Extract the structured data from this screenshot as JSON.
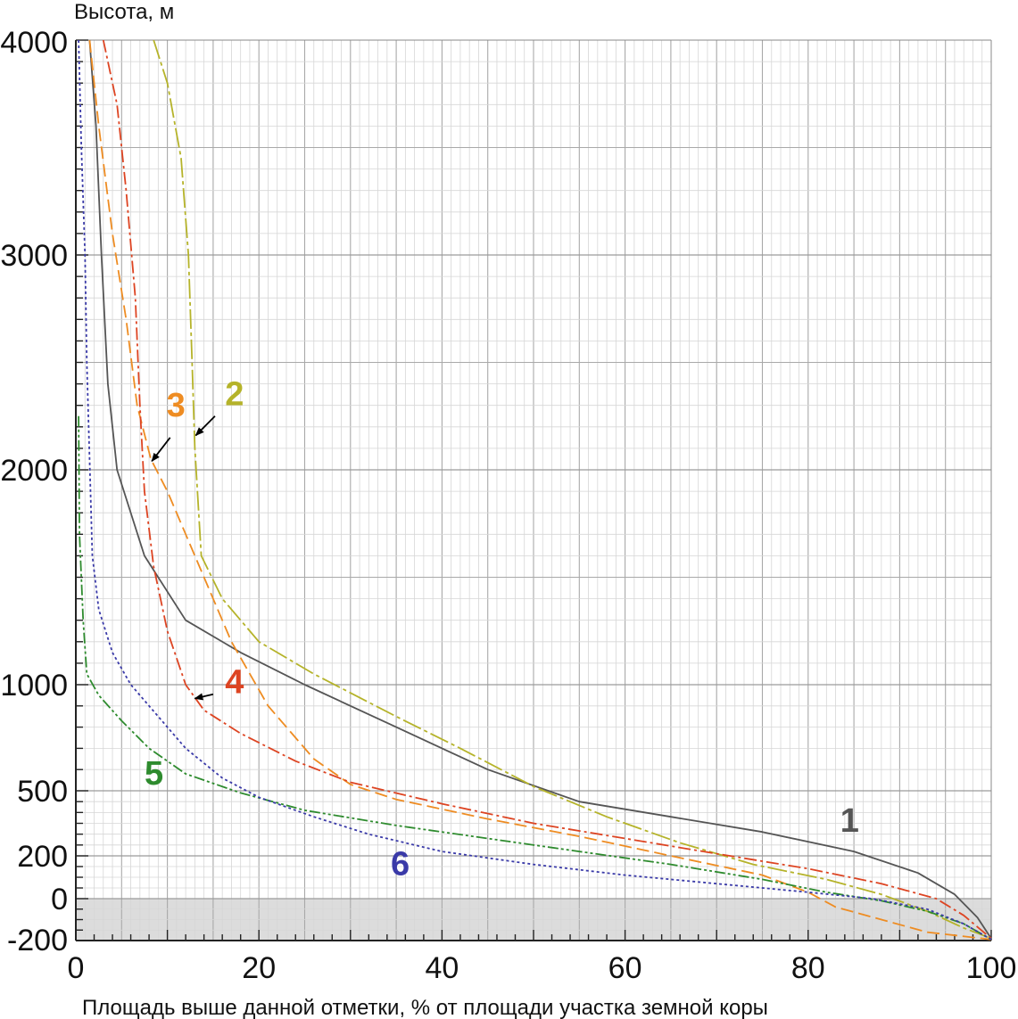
{
  "chart_data": {
    "type": "line",
    "xlabel": "Площадь выше данной отметки, % от площади участка земной коры",
    "ylabel": "Высота, м",
    "xlim": [
      0,
      100
    ],
    "ylim": [
      -200,
      4000
    ],
    "x_ticks": [
      0,
      20,
      40,
      60,
      80,
      100
    ],
    "y_ticks": [
      -200,
      0,
      200,
      500,
      1000,
      2000,
      3000,
      4000
    ],
    "y_ticks_labels": [
      "-200",
      "0",
      "200",
      "500",
      "1000",
      "2000",
      "3000",
      "4000"
    ],
    "x_ticks_labels": [
      "0",
      "20",
      "40",
      "60",
      "80",
      "100"
    ],
    "grid": true,
    "shaded_band": [
      -200,
      0
    ],
    "series": [
      {
        "name": "1",
        "color": "#555555",
        "dash": "",
        "label_at": [
          83.5,
          310
        ],
        "points": [
          [
            1.5,
            4000
          ],
          [
            2.2,
            3600
          ],
          [
            2.8,
            3000
          ],
          [
            3.5,
            2400
          ],
          [
            4.5,
            2000
          ],
          [
            7.5,
            1600
          ],
          [
            12,
            1300
          ],
          [
            18,
            1150
          ],
          [
            25,
            1000
          ],
          [
            35,
            800
          ],
          [
            45,
            600
          ],
          [
            55,
            450
          ],
          [
            65,
            380
          ],
          [
            75,
            310
          ],
          [
            85,
            220
          ],
          [
            92,
            120
          ],
          [
            96,
            20
          ],
          [
            98.5,
            -90
          ],
          [
            100,
            -190
          ]
        ]
      },
      {
        "name": "2",
        "color": "#b5b32a",
        "dash": "22,4,4,4",
        "label_at": [
          16.3,
          2300
        ],
        "points": [
          [
            8.5,
            4000
          ],
          [
            10,
            3800
          ],
          [
            11.5,
            3450
          ],
          [
            12.3,
            3000
          ],
          [
            12.7,
            2500
          ],
          [
            13,
            2100
          ],
          [
            13.7,
            1600
          ],
          [
            16,
            1400
          ],
          [
            20,
            1200
          ],
          [
            26,
            1050
          ],
          [
            35,
            850
          ],
          [
            42,
            700
          ],
          [
            50,
            520
          ],
          [
            58,
            380
          ],
          [
            66,
            260
          ],
          [
            74,
            160
          ],
          [
            82,
            90
          ],
          [
            88,
            20
          ],
          [
            93,
            -60
          ],
          [
            97,
            -140
          ],
          [
            100,
            -190
          ]
        ]
      },
      {
        "name": "3",
        "color": "#ee8c22",
        "dash": "14,6",
        "label_at": [
          9.9,
          2250
        ],
        "points": [
          [
            1.5,
            4000
          ],
          [
            2.5,
            3600
          ],
          [
            4,
            3100
          ],
          [
            5.5,
            2700
          ],
          [
            6.7,
            2300
          ],
          [
            8.2,
            2050
          ],
          [
            10,
            1900
          ],
          [
            13,
            1600
          ],
          [
            17,
            1200
          ],
          [
            21,
            900
          ],
          [
            26,
            650
          ],
          [
            30,
            530
          ],
          [
            35,
            460
          ],
          [
            45,
            370
          ],
          [
            55,
            290
          ],
          [
            65,
            200
          ],
          [
            75,
            110
          ],
          [
            80,
            30
          ],
          [
            83,
            -40
          ],
          [
            88,
            -100
          ],
          [
            93,
            -160
          ],
          [
            100,
            -195
          ]
        ]
      },
      {
        "name": "4",
        "color": "#dd4422",
        "dash": "14,4,3,4",
        "label_at": [
          16.3,
          960
        ],
        "points": [
          [
            3,
            4000
          ],
          [
            4.5,
            3700
          ],
          [
            5.5,
            3300
          ],
          [
            6.5,
            2800
          ],
          [
            7,
            2300
          ],
          [
            7.5,
            1900
          ],
          [
            8.5,
            1550
          ],
          [
            10,
            1250
          ],
          [
            12,
            1000
          ],
          [
            14,
            880
          ],
          [
            18,
            770
          ],
          [
            24,
            640
          ],
          [
            30,
            540
          ],
          [
            40,
            440
          ],
          [
            50,
            350
          ],
          [
            60,
            280
          ],
          [
            70,
            210
          ],
          [
            80,
            140
          ],
          [
            88,
            70
          ],
          [
            94,
            0
          ],
          [
            97,
            -80
          ],
          [
            100,
            -190
          ]
        ]
      },
      {
        "name": "5",
        "color": "#2e8b2e",
        "dash": "12,3,3,3,3,3",
        "label_at": [
          7.5,
          530
        ],
        "points": [
          [
            0.3,
            2250
          ],
          [
            0.4,
            1700
          ],
          [
            0.8,
            1300
          ],
          [
            1.2,
            1050
          ],
          [
            2.5,
            950
          ],
          [
            5,
            830
          ],
          [
            8,
            700
          ],
          [
            12,
            580
          ],
          [
            18,
            490
          ],
          [
            25,
            410
          ],
          [
            35,
            340
          ],
          [
            45,
            280
          ],
          [
            55,
            220
          ],
          [
            65,
            160
          ],
          [
            75,
            90
          ],
          [
            82,
            30
          ],
          [
            88,
            -10
          ],
          [
            93,
            -60
          ],
          [
            97,
            -120
          ],
          [
            100,
            -195
          ]
        ]
      },
      {
        "name": "6",
        "color": "#3a3aa8",
        "dash": "3,3",
        "label_at": [
          34.4,
          110
        ],
        "points": [
          [
            0.3,
            4000
          ],
          [
            0.6,
            3500
          ],
          [
            1,
            3000
          ],
          [
            1.2,
            2500
          ],
          [
            1.8,
            1600
          ],
          [
            2.5,
            1350
          ],
          [
            4,
            1150
          ],
          [
            6,
            1000
          ],
          [
            8,
            900
          ],
          [
            12,
            700
          ],
          [
            16,
            560
          ],
          [
            20,
            470
          ],
          [
            26,
            380
          ],
          [
            32,
            300
          ],
          [
            40,
            220
          ],
          [
            50,
            160
          ],
          [
            60,
            110
          ],
          [
            70,
            70
          ],
          [
            80,
            30
          ],
          [
            87,
            0
          ],
          [
            93,
            -50
          ],
          [
            97,
            -120
          ],
          [
            100,
            -195
          ]
        ]
      }
    ],
    "annotations": [
      {
        "series": "2",
        "from": [
          15.2,
          2250
        ],
        "to": [
          13.1,
          2160
        ]
      },
      {
        "series": "3",
        "from": [
          10.3,
          2150
        ],
        "to": [
          8.3,
          2040
        ]
      },
      {
        "series": "4",
        "from": [
          15,
          955
        ],
        "to": [
          13,
          935
        ]
      }
    ]
  }
}
